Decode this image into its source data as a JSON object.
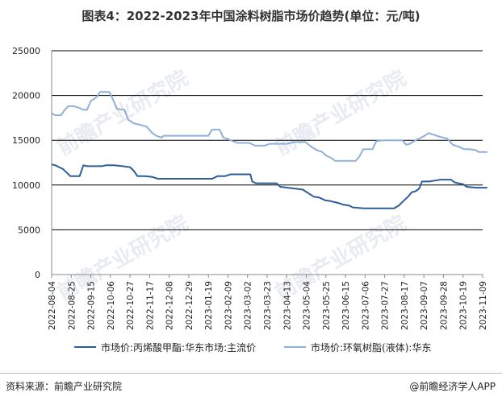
{
  "title": "图表4：2022-2023年中国涂料树脂市场价趋势(单位：元/吨)",
  "source": "资料来源：前瞻产业研究院",
  "brand": "@前瞻经济学人APP",
  "watermark": "前瞻产业研究院",
  "colors": {
    "series1": "#2e5e96",
    "series2": "#8fb0d8",
    "grid": "#000000",
    "axis": "#888888"
  },
  "chart_data": {
    "type": "line",
    "ylim": [
      0,
      25000
    ],
    "yticks": [
      "0",
      "5000",
      "10000",
      "15000",
      "20000",
      "25000"
    ],
    "xticks": [
      "2022-08-04",
      "2022-08-25",
      "2022-09-15",
      "2022-10-06",
      "2022-10-27",
      "2022-11-17",
      "2022-12-08",
      "2022-12-29",
      "2023-01-19",
      "2023-02-09",
      "2023-03-02",
      "2023-03-23",
      "2023-04-13",
      "2023-05-04",
      "2023-05-25",
      "2023-06-15",
      "2023-07-06",
      "2023-07-27",
      "2023-08-17",
      "2023-09-07",
      "2023-09-28",
      "2023-10-19",
      "2023-11-09"
    ],
    "grid": true,
    "legend_position": "bottom",
    "series": [
      {
        "name": "市场价:丙烯酸甲酯:华东市场:主流价",
        "points": [
          [
            "2022-08-04",
            12300
          ],
          [
            "2022-08-08",
            12200
          ],
          [
            "2022-08-12",
            12000
          ],
          [
            "2022-08-16",
            11800
          ],
          [
            "2022-08-20",
            11400
          ],
          [
            "2022-08-24",
            11000
          ],
          [
            "2022-08-29",
            11000
          ],
          [
            "2022-09-03",
            11000
          ],
          [
            "2022-09-07",
            12200
          ],
          [
            "2022-09-11",
            12100
          ],
          [
            "2022-09-19",
            12100
          ],
          [
            "2022-09-27",
            12100
          ],
          [
            "2022-10-01",
            12200
          ],
          [
            "2022-10-10",
            12200
          ],
          [
            "2022-10-19",
            12100
          ],
          [
            "2022-10-27",
            12000
          ],
          [
            "2022-10-31",
            11600
          ],
          [
            "2022-11-04",
            11000
          ],
          [
            "2022-11-12",
            11000
          ],
          [
            "2022-11-20",
            10900
          ],
          [
            "2022-11-26",
            10700
          ],
          [
            "2022-12-08",
            10700
          ],
          [
            "2022-12-20",
            10700
          ],
          [
            "2023-01-03",
            10700
          ],
          [
            "2023-01-15",
            10700
          ],
          [
            "2023-01-23",
            10700
          ],
          [
            "2023-01-29",
            11000
          ],
          [
            "2023-02-06",
            11000
          ],
          [
            "2023-02-12",
            11200
          ],
          [
            "2023-02-20",
            11200
          ],
          [
            "2023-03-01",
            11200
          ],
          [
            "2023-03-05",
            11200
          ],
          [
            "2023-03-07",
            10400
          ],
          [
            "2023-03-11",
            10200
          ],
          [
            "2023-03-19",
            10200
          ],
          [
            "2023-03-27",
            10200
          ],
          [
            "2023-04-02",
            10200
          ],
          [
            "2023-04-06",
            9800
          ],
          [
            "2023-04-14",
            9700
          ],
          [
            "2023-04-22",
            9600
          ],
          [
            "2023-04-30",
            9500
          ],
          [
            "2023-05-06",
            9100
          ],
          [
            "2023-05-12",
            8700
          ],
          [
            "2023-05-18",
            8600
          ],
          [
            "2023-05-24",
            8300
          ],
          [
            "2023-05-30",
            8200
          ],
          [
            "2023-06-07",
            8000
          ],
          [
            "2023-06-13",
            7800
          ],
          [
            "2023-06-19",
            7700
          ],
          [
            "2023-06-23",
            7500
          ],
          [
            "2023-07-05",
            7400
          ],
          [
            "2023-07-15",
            7400
          ],
          [
            "2023-07-27",
            7400
          ],
          [
            "2023-08-06",
            7400
          ],
          [
            "2023-08-11",
            7700
          ],
          [
            "2023-08-17",
            8300
          ],
          [
            "2023-08-21",
            8700
          ],
          [
            "2023-08-25",
            9200
          ],
          [
            "2023-08-29",
            9300
          ],
          [
            "2023-09-02",
            9600
          ],
          [
            "2023-09-05",
            10400
          ],
          [
            "2023-09-13",
            10400
          ],
          [
            "2023-09-19",
            10500
          ],
          [
            "2023-09-25",
            10600
          ],
          [
            "2023-09-30",
            10600
          ],
          [
            "2023-10-06",
            10600
          ],
          [
            "2023-10-10",
            10300
          ],
          [
            "2023-10-14",
            10200
          ],
          [
            "2023-10-19",
            10100
          ],
          [
            "2023-10-23",
            9800
          ],
          [
            "2023-11-02",
            9700
          ],
          [
            "2023-11-10",
            9700
          ],
          [
            "2023-11-14",
            9700
          ]
        ]
      },
      {
        "name": "市场价:环氧树脂(液体):华东",
        "points": [
          [
            "2022-08-04",
            18000
          ],
          [
            "2022-08-08",
            17800
          ],
          [
            "2022-08-14",
            17800
          ],
          [
            "2022-08-18",
            18400
          ],
          [
            "2022-08-22",
            18800
          ],
          [
            "2022-08-28",
            18800
          ],
          [
            "2022-09-03",
            18600
          ],
          [
            "2022-09-07",
            18400
          ],
          [
            "2022-09-11",
            18400
          ],
          [
            "2022-09-15",
            19400
          ],
          [
            "2022-09-21",
            19800
          ],
          [
            "2022-09-25",
            20400
          ],
          [
            "2022-10-01",
            20400
          ],
          [
            "2022-10-05",
            20400
          ],
          [
            "2022-10-09",
            19500
          ],
          [
            "2022-10-13",
            18500
          ],
          [
            "2022-10-21",
            18400
          ],
          [
            "2022-10-25",
            17300
          ],
          [
            "2022-10-31",
            16900
          ],
          [
            "2022-11-08",
            16700
          ],
          [
            "2022-11-14",
            16500
          ],
          [
            "2022-11-20",
            15800
          ],
          [
            "2022-11-24",
            15500
          ],
          [
            "2022-11-30",
            15300
          ],
          [
            "2022-12-02",
            15500
          ],
          [
            "2022-12-10",
            15500
          ],
          [
            "2022-12-22",
            15500
          ],
          [
            "2023-01-05",
            15500
          ],
          [
            "2023-01-19",
            15500
          ],
          [
            "2023-01-23",
            16200
          ],
          [
            "2023-01-31",
            16200
          ],
          [
            "2023-02-04",
            15300
          ],
          [
            "2023-02-10",
            15100
          ],
          [
            "2023-02-14",
            14900
          ],
          [
            "2023-02-20",
            14700
          ],
          [
            "2023-03-04",
            14700
          ],
          [
            "2023-03-10",
            14400
          ],
          [
            "2023-03-20",
            14400
          ],
          [
            "2023-03-26",
            14600
          ],
          [
            "2023-04-05",
            14600
          ],
          [
            "2023-04-13",
            14600
          ],
          [
            "2023-04-21",
            14800
          ],
          [
            "2023-04-27",
            14800
          ],
          [
            "2023-05-03",
            14800
          ],
          [
            "2023-05-09",
            14300
          ],
          [
            "2023-05-15",
            13900
          ],
          [
            "2023-05-21",
            13700
          ],
          [
            "2023-05-25",
            13300
          ],
          [
            "2023-05-31",
            13000
          ],
          [
            "2023-06-04",
            12700
          ],
          [
            "2023-06-16",
            12700
          ],
          [
            "2023-06-26",
            12700
          ],
          [
            "2023-06-30",
            13200
          ],
          [
            "2023-07-04",
            14000
          ],
          [
            "2023-07-14",
            14000
          ],
          [
            "2023-07-18",
            14900
          ],
          [
            "2023-07-26",
            15000
          ],
          [
            "2023-08-05",
            15000
          ],
          [
            "2023-08-15",
            15000
          ],
          [
            "2023-08-19",
            14500
          ],
          [
            "2023-08-23",
            14600
          ],
          [
            "2023-08-29",
            15000
          ],
          [
            "2023-09-04",
            15300
          ],
          [
            "2023-09-08",
            15500
          ],
          [
            "2023-09-12",
            15800
          ],
          [
            "2023-09-18",
            15600
          ],
          [
            "2023-09-24",
            15400
          ],
          [
            "2023-10-02",
            15200
          ],
          [
            "2023-10-08",
            14500
          ],
          [
            "2023-10-14",
            14300
          ],
          [
            "2023-10-20",
            14000
          ],
          [
            "2023-10-26",
            14000
          ],
          [
            "2023-11-01",
            13900
          ],
          [
            "2023-11-05",
            13700
          ],
          [
            "2023-11-14",
            13700
          ]
        ]
      }
    ]
  }
}
